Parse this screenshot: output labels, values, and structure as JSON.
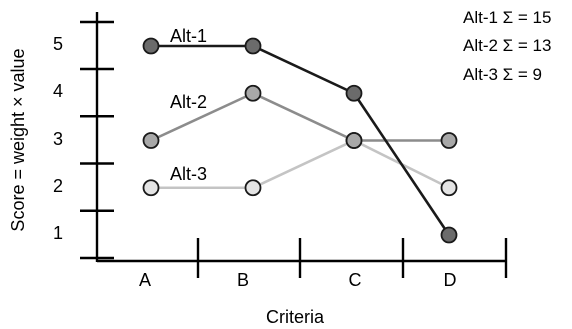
{
  "chart_data": {
    "type": "line",
    "xlabel": "Criteria",
    "ylabel": "Score = weight × value",
    "categories": [
      "A",
      "B",
      "C",
      "D"
    ],
    "y_ticks": [
      "1",
      "2",
      "3",
      "4",
      "5"
    ],
    "ylim": [
      0.5,
      5.5
    ],
    "grid": false,
    "series": [
      {
        "name": "Alt-1",
        "values": [
          5,
          5,
          4,
          1
        ],
        "color": "#1a1a1a",
        "marker_fill": "#6b6b6b"
      },
      {
        "name": "Alt-2",
        "values": [
          3,
          4,
          3,
          3
        ],
        "color": "#8c8c8c",
        "marker_fill": "#a8a8a8"
      },
      {
        "name": "Alt-3",
        "values": [
          2,
          2,
          3,
          2
        ],
        "color": "#c4c4c4",
        "marker_fill": "#e4e4e4"
      }
    ],
    "totals": [
      {
        "label": "Alt-1 Σ = 15"
      },
      {
        "label": "Alt-2 Σ = 13"
      },
      {
        "label": "Alt-3 Σ = 9"
      }
    ]
  }
}
